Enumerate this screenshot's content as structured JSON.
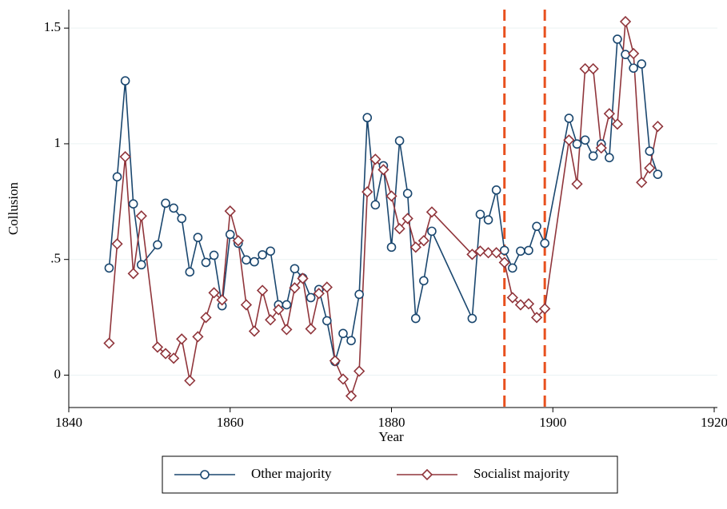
{
  "chart_data": {
    "type": "line",
    "x_label": "Year",
    "y_label": "Collusion",
    "x": [
      1845,
      1846,
      1847,
      1848,
      1849,
      1851,
      1852,
      1853,
      1854,
      1855,
      1856,
      1857,
      1858,
      1859,
      1860,
      1861,
      1862,
      1863,
      1864,
      1865,
      1866,
      1867,
      1868,
      1869,
      1870,
      1871,
      1872,
      1873,
      1874,
      1875,
      1876,
      1877,
      1878,
      1879,
      1880,
      1881,
      1882,
      1883,
      1884,
      1885,
      1890,
      1891,
      1892,
      1893,
      1894,
      1895,
      1896,
      1897,
      1898,
      1899,
      1902,
      1903,
      1904,
      1905,
      1906,
      1907,
      1908,
      1909,
      1910,
      1911,
      1912,
      1913
    ],
    "series": [
      {
        "name": "Other majority",
        "color": "#1a476f",
        "marker": "circle",
        "values": [
          0.463,
          0.857,
          1.272,
          0.74,
          0.477,
          0.563,
          0.743,
          0.722,
          0.677,
          0.446,
          0.595,
          0.487,
          0.518,
          0.3,
          0.608,
          0.57,
          0.498,
          0.49,
          0.52,
          0.536,
          0.304,
          0.304,
          0.46,
          0.42,
          0.335,
          0.37,
          0.235,
          0.059,
          0.18,
          0.149,
          0.349,
          1.113,
          0.736,
          0.905,
          0.553,
          1.013,
          0.785,
          0.245,
          0.408,
          0.622,
          0.245,
          0.695,
          0.671,
          0.8,
          0.539,
          0.463,
          0.536,
          0.539,
          0.643,
          0.57,
          1.11,
          0.999,
          1.016,
          0.947,
          0.999,
          0.94,
          1.452,
          1.386,
          1.327,
          1.345,
          0.968,
          0.868
        ]
      },
      {
        "name": "Socialist majority",
        "color": "#90353b",
        "marker": "diamond",
        "values": [
          0.138,
          0.567,
          0.944,
          0.439,
          0.688,
          0.121,
          0.093,
          0.073,
          0.156,
          -0.024,
          0.166,
          0.249,
          0.356,
          0.325,
          0.709,
          0.581,
          0.304,
          0.19,
          0.366,
          0.239,
          0.283,
          0.197,
          0.377,
          0.418,
          0.2,
          0.353,
          0.38,
          0.062,
          -0.017,
          -0.09,
          0.017,
          0.792,
          0.933,
          0.888,
          0.774,
          0.633,
          0.677,
          0.553,
          0.581,
          0.705,
          0.522,
          0.536,
          0.529,
          0.529,
          0.487,
          0.335,
          0.304,
          0.308,
          0.249,
          0.287,
          1.016,
          0.826,
          1.324,
          1.324,
          0.982,
          1.13,
          1.085,
          1.528,
          1.39,
          0.833,
          0.895,
          1.075
        ]
      }
    ],
    "vlines": [
      1894,
      1899
    ],
    "vline_color": "#e8501e",
    "xlim": [
      1840,
      1920
    ],
    "xticks": [
      1840,
      1860,
      1880,
      1900,
      1920
    ],
    "ylim": [
      -0.14,
      1.58
    ],
    "yticks": [
      0,
      {
        "value": 0.5,
        "label": ".5"
      },
      1,
      1.5
    ],
    "grid": true,
    "legend": "bottom"
  }
}
